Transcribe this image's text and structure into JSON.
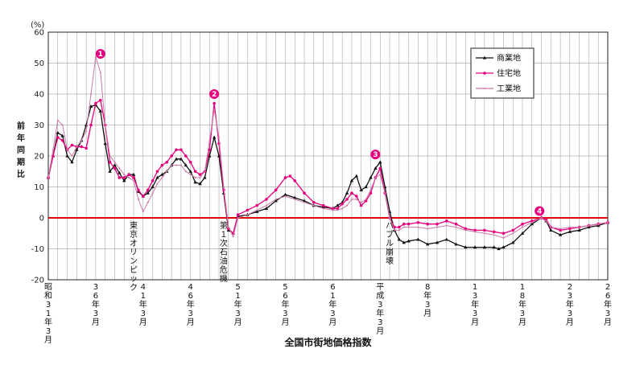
{
  "chart_data": {
    "type": "line",
    "title": "",
    "xlabel": "全国市街地価格指数",
    "ylabel": "前年同期比",
    "y_unit": "(%)",
    "ylim": [
      -20,
      60
    ],
    "yticks": [
      -20,
      -10,
      0,
      10,
      20,
      30,
      40,
      50,
      60
    ],
    "grid": true,
    "legend_position": "top-right",
    "x_tick_labels": [
      "昭和31年3月",
      "36年3月",
      "41年3月",
      "46年3月",
      "51年3月",
      "56年3月",
      "61年3月",
      "平成3年3月",
      "8年3月",
      "13年3月",
      "18年3月",
      "23年3月",
      "26年3月"
    ],
    "series": [
      {
        "name": "商業地",
        "color": "#111111",
        "marker": "triangle",
        "points": [
          [
            31,
            13
          ],
          [
            31.5,
            20
          ],
          [
            32,
            27.5
          ],
          [
            32.5,
            26.5
          ],
          [
            33,
            20
          ],
          [
            33.5,
            18
          ],
          [
            34,
            22
          ],
          [
            34.5,
            25
          ],
          [
            35,
            30
          ],
          [
            35.5,
            36
          ],
          [
            36,
            36.5
          ],
          [
            36.5,
            34.5
          ],
          [
            37,
            24
          ],
          [
            37.5,
            15
          ],
          [
            38,
            17
          ],
          [
            38.5,
            14.5
          ],
          [
            39,
            12
          ],
          [
            39.5,
            14
          ],
          [
            40,
            14
          ],
          [
            40.5,
            8.5
          ],
          [
            41,
            7
          ],
          [
            41.5,
            8
          ],
          [
            42,
            10
          ],
          [
            42.5,
            13
          ],
          [
            43,
            14
          ],
          [
            43.5,
            15
          ],
          [
            44,
            17
          ],
          [
            44.5,
            19
          ],
          [
            45,
            19
          ],
          [
            45.5,
            17
          ],
          [
            46,
            15
          ],
          [
            46.5,
            11.5
          ],
          [
            47,
            11
          ],
          [
            47.5,
            13
          ],
          [
            48,
            20
          ],
          [
            48.5,
            26
          ],
          [
            49,
            20
          ],
          [
            49.5,
            8
          ],
          [
            50,
            -4
          ],
          [
            50.5,
            -5
          ],
          [
            51,
            0.5
          ],
          [
            52,
            1
          ],
          [
            53,
            2
          ],
          [
            54,
            3
          ],
          [
            55,
            5.5
          ],
          [
            56,
            7.5
          ],
          [
            57,
            6.5
          ],
          [
            58,
            5.5
          ],
          [
            59,
            4
          ],
          [
            60,
            3.5
          ],
          [
            61,
            3
          ],
          [
            61.5,
            4
          ],
          [
            62,
            5
          ],
          [
            62.5,
            8
          ],
          [
            63,
            12
          ],
          [
            63.5,
            13.5
          ],
          [
            64,
            9
          ],
          [
            64.5,
            10
          ],
          [
            65,
            13
          ],
          [
            65.5,
            16
          ],
          [
            66,
            18
          ],
          [
            66.5,
            10
          ],
          [
            67,
            2
          ],
          [
            67.5,
            -4
          ],
          [
            68,
            -7
          ],
          [
            68.5,
            -8
          ],
          [
            69,
            -7.5
          ],
          [
            70,
            -7
          ],
          [
            71,
            -8.5
          ],
          [
            72,
            -8
          ],
          [
            73,
            -7
          ],
          [
            74,
            -8.5
          ],
          [
            75,
            -9.5
          ],
          [
            76,
            -9.5
          ],
          [
            77,
            -9.5
          ],
          [
            78,
            -9.5
          ],
          [
            78.5,
            -10
          ],
          [
            79,
            -9.5
          ],
          [
            80,
            -8
          ],
          [
            81,
            -5
          ],
          [
            82,
            -2
          ],
          [
            83,
            0
          ],
          [
            83.5,
            -1
          ],
          [
            84,
            -4
          ],
          [
            85,
            -5.5
          ],
          [
            86,
            -4.5
          ],
          [
            87,
            -4
          ],
          [
            88,
            -3
          ],
          [
            89,
            -2.5
          ],
          [
            90,
            -1.5
          ]
        ]
      },
      {
        "name": "住宅地",
        "color": "#e6007e",
        "marker": "circle",
        "points": [
          [
            31,
            13
          ],
          [
            31.5,
            20
          ],
          [
            32,
            26
          ],
          [
            32.5,
            25
          ],
          [
            33,
            22
          ],
          [
            33.5,
            23.5
          ],
          [
            34,
            23
          ],
          [
            34.5,
            23
          ],
          [
            35,
            22.5
          ],
          [
            35.5,
            30
          ],
          [
            36,
            37
          ],
          [
            36.5,
            38
          ],
          [
            37,
            30
          ],
          [
            37.5,
            18
          ],
          [
            38,
            16
          ],
          [
            38.5,
            13
          ],
          [
            39,
            13
          ],
          [
            39.5,
            14
          ],
          [
            40,
            13
          ],
          [
            40.5,
            9
          ],
          [
            41,
            7
          ],
          [
            41.5,
            9
          ],
          [
            42,
            12
          ],
          [
            42.5,
            15
          ],
          [
            43,
            17
          ],
          [
            43.5,
            18
          ],
          [
            44,
            20
          ],
          [
            44.5,
            22
          ],
          [
            45,
            22
          ],
          [
            45.5,
            20
          ],
          [
            46,
            18
          ],
          [
            46.5,
            15
          ],
          [
            47,
            14
          ],
          [
            47.5,
            15
          ],
          [
            48,
            22
          ],
          [
            48.5,
            37
          ],
          [
            49,
            24
          ],
          [
            49.5,
            9
          ],
          [
            50,
            -3.5
          ],
          [
            50.5,
            -5
          ],
          [
            51,
            1
          ],
          [
            52,
            2.5
          ],
          [
            53,
            4
          ],
          [
            54,
            6
          ],
          [
            55,
            9
          ],
          [
            56,
            13
          ],
          [
            56.5,
            13.5
          ],
          [
            57,
            12
          ],
          [
            58,
            8
          ],
          [
            59,
            5
          ],
          [
            60,
            4
          ],
          [
            61,
            3
          ],
          [
            61.5,
            3
          ],
          [
            62,
            4.5
          ],
          [
            62.5,
            6
          ],
          [
            63,
            8
          ],
          [
            63.5,
            7
          ],
          [
            64,
            4
          ],
          [
            64.5,
            5.5
          ],
          [
            65,
            8
          ],
          [
            65.5,
            13
          ],
          [
            66,
            16
          ],
          [
            66.5,
            8
          ],
          [
            67,
            0
          ],
          [
            67.5,
            -3
          ],
          [
            68,
            -3
          ],
          [
            68.5,
            -2
          ],
          [
            69,
            -2
          ],
          [
            70,
            -1.5
          ],
          [
            71,
            -2
          ],
          [
            72,
            -2
          ],
          [
            73,
            -1
          ],
          [
            74,
            -2
          ],
          [
            75,
            -3.5
          ],
          [
            76,
            -4
          ],
          [
            77,
            -4
          ],
          [
            78,
            -4.5
          ],
          [
            79,
            -5
          ],
          [
            80,
            -4
          ],
          [
            81,
            -2
          ],
          [
            82,
            -1
          ],
          [
            83,
            0
          ],
          [
            83.5,
            -0.5
          ],
          [
            84,
            -3
          ],
          [
            85,
            -4
          ],
          [
            86,
            -3.5
          ],
          [
            87,
            -3
          ],
          [
            88,
            -2.5
          ],
          [
            89,
            -2
          ],
          [
            90,
            -1.5
          ]
        ]
      },
      {
        "name": "工業地",
        "color": "#c97ba8",
        "marker": "dot",
        "points": [
          [
            31,
            13
          ],
          [
            31.5,
            22
          ],
          [
            32,
            31.5
          ],
          [
            32.5,
            30
          ],
          [
            33,
            22
          ],
          [
            33.5,
            20
          ],
          [
            34,
            23
          ],
          [
            34.5,
            25
          ],
          [
            35,
            28
          ],
          [
            35.5,
            40
          ],
          [
            36,
            52
          ],
          [
            36.5,
            47
          ],
          [
            37,
            30
          ],
          [
            37.5,
            20
          ],
          [
            38,
            18
          ],
          [
            38.5,
            16
          ],
          [
            39,
            14
          ],
          [
            39.5,
            13
          ],
          [
            40,
            12
          ],
          [
            40.5,
            6
          ],
          [
            41,
            2
          ],
          [
            41.5,
            5
          ],
          [
            42,
            8
          ],
          [
            42.5,
            11
          ],
          [
            43,
            13
          ],
          [
            43.5,
            15
          ],
          [
            44,
            17
          ],
          [
            44.5,
            17
          ],
          [
            45,
            17
          ],
          [
            45.5,
            15
          ],
          [
            46,
            14
          ],
          [
            46.5,
            13
          ],
          [
            47,
            13
          ],
          [
            47.5,
            15
          ],
          [
            48,
            25
          ],
          [
            48.5,
            35
          ],
          [
            49,
            26
          ],
          [
            49.5,
            10
          ],
          [
            50,
            -3
          ],
          [
            50.5,
            -6
          ],
          [
            51,
            0
          ],
          [
            52,
            1
          ],
          [
            53,
            2.5
          ],
          [
            54,
            4
          ],
          [
            55,
            6
          ],
          [
            56,
            7
          ],
          [
            57,
            6
          ],
          [
            58,
            5
          ],
          [
            59,
            4
          ],
          [
            60,
            3
          ],
          [
            61,
            2.5
          ],
          [
            61.5,
            2.5
          ],
          [
            62,
            3
          ],
          [
            62.5,
            4
          ],
          [
            63,
            6
          ],
          [
            63.5,
            6
          ],
          [
            64,
            5
          ],
          [
            64.5,
            6
          ],
          [
            65,
            9
          ],
          [
            65.5,
            13
          ],
          [
            66,
            14
          ],
          [
            66.5,
            8
          ],
          [
            67,
            0
          ],
          [
            67.5,
            -4
          ],
          [
            68,
            -4
          ],
          [
            68.5,
            -3
          ],
          [
            69,
            -3
          ],
          [
            70,
            -3
          ],
          [
            71,
            -3.5
          ],
          [
            72,
            -3
          ],
          [
            73,
            -2.5
          ],
          [
            74,
            -3
          ],
          [
            75,
            -4
          ],
          [
            76,
            -4.5
          ],
          [
            77,
            -5
          ],
          [
            78,
            -5.5
          ],
          [
            79,
            -6.5
          ],
          [
            80,
            -5
          ],
          [
            81,
            -3
          ],
          [
            82,
            -1.5
          ],
          [
            83,
            0
          ],
          [
            83.5,
            -1
          ],
          [
            84,
            -3
          ],
          [
            85,
            -3.5
          ],
          [
            86,
            -3
          ],
          [
            87,
            -3
          ],
          [
            88,
            -2.5
          ],
          [
            89,
            -2
          ],
          [
            90,
            -1.5
          ]
        ]
      }
    ],
    "annotations": [
      {
        "x": 36.5,
        "y": 53,
        "label": "1",
        "kind": "badge"
      },
      {
        "x": 48.5,
        "y": 40,
        "label": "2",
        "kind": "badge"
      },
      {
        "x": 65.5,
        "y": 20.5,
        "label": "3",
        "kind": "badge"
      },
      {
        "x": 82.8,
        "y": 2.2,
        "label": "4",
        "kind": "badge"
      },
      {
        "x": 40,
        "text": "東京オリンピック",
        "kind": "event"
      },
      {
        "x": 49.5,
        "text": "第１次石油危機",
        "kind": "event"
      },
      {
        "x": 67,
        "text": "バブル崩壊",
        "kind": "event"
      }
    ],
    "accent_color": "#e6007e",
    "zero_line_color": "#e00000"
  }
}
